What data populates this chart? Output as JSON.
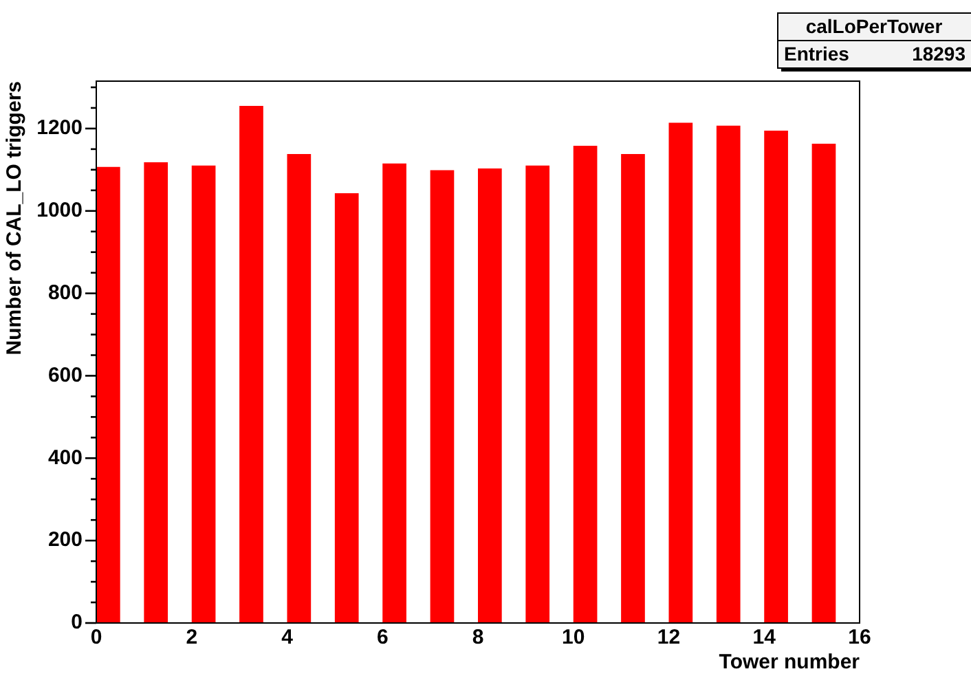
{
  "chart_data": {
    "type": "bar",
    "xlabel": "Tower number",
    "ylabel": "Number of CAL_LO triggers",
    "annotations": [
      "calLoPerTower",
      "Entries 18293"
    ],
    "x": [
      0.25,
      1.25,
      2.25,
      3.25,
      4.25,
      5.25,
      6.25,
      7.25,
      8.25,
      9.25,
      10.25,
      11.25,
      12.25,
      13.25,
      14.25,
      15.25
    ],
    "values": [
      1107,
      1118,
      1110,
      1255,
      1138,
      1043,
      1115,
      1099,
      1103,
      1110,
      1158,
      1138,
      1214,
      1207,
      1195,
      1163
    ],
    "color": "#ff0000",
    "xlim": [
      0,
      16
    ],
    "xticks": [
      0,
      2,
      4,
      6,
      8,
      10,
      12,
      14,
      16
    ],
    "ylim": [
      0,
      1315
    ],
    "yticks": [
      0,
      {
        "value": 50,
        "label": null
      },
      {
        "value": 100,
        "label": null
      },
      {
        "value": 150,
        "label": null
      },
      200,
      {
        "value": 250,
        "label": null
      },
      {
        "value": 300,
        "label": null
      },
      {
        "value": 350,
        "label": null
      },
      400,
      {
        "value": 450,
        "label": null
      },
      {
        "value": 500,
        "label": null
      },
      {
        "value": 550,
        "label": null
      },
      600,
      {
        "value": 650,
        "label": null
      },
      {
        "value": 700,
        "label": null
      },
      {
        "value": 750,
        "label": null
      },
      800,
      {
        "value": 850,
        "label": null
      },
      {
        "value": 900,
        "label": null
      },
      {
        "value": 950,
        "label": null
      },
      1000,
      {
        "value": 1050,
        "label": null
      },
      {
        "value": 1100,
        "label": null
      },
      {
        "value": 1150,
        "label": null
      },
      1200,
      {
        "value": 1250,
        "label": null
      },
      {
        "value": 1300,
        "label": null
      }
    ]
  }
}
